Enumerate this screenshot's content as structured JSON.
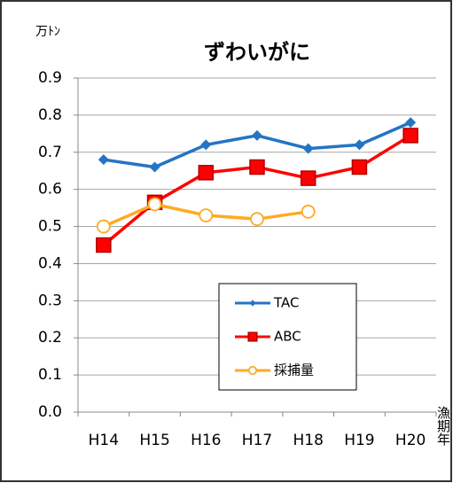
{
  "chart_data": {
    "type": "line",
    "title": "ずわいがに",
    "y_label": "万ﾄﾝ",
    "x_label": "漁期年",
    "categories": [
      "H14",
      "H15",
      "H16",
      "H17",
      "H18",
      "H19",
      "H20"
    ],
    "series": [
      {
        "name": "TAC",
        "color": "#2474c4",
        "marker": "diamond",
        "values": [
          0.68,
          0.66,
          0.72,
          0.745,
          0.71,
          0.72,
          0.78
        ]
      },
      {
        "name": "ABC",
        "color": "#ff0000",
        "marker": "square",
        "values": [
          0.45,
          0.565,
          0.645,
          0.66,
          0.63,
          0.66,
          0.745
        ]
      },
      {
        "name": "採捕量",
        "color": "#ffaa22",
        "marker": "circle",
        "values": [
          0.5,
          0.56,
          0.53,
          0.52,
          0.54,
          null,
          null
        ]
      }
    ],
    "ylim": [
      0,
      0.9
    ],
    "yticks": [
      {
        "value": 0,
        "label": "0.0"
      },
      0.1,
      0.2,
      0.3,
      0.4,
      0.5,
      0.6,
      0.7,
      0.8,
      0.9
    ],
    "grid": true
  }
}
